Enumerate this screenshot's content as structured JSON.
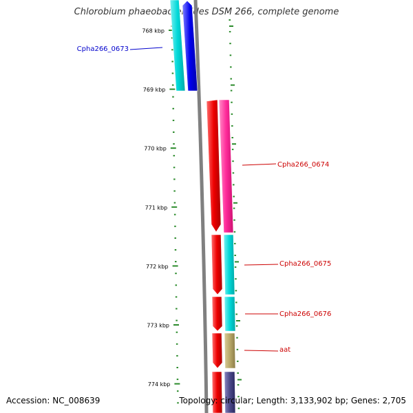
{
  "title": "Chlorobium phaeobacteroides DSM 266, complete genome",
  "footer": {
    "accession": "Accession: NC_008639",
    "summary": "Topology: circular; Length: 3,133,902 bp; Genes: 2,705"
  },
  "colors": {
    "backbone": "#808080",
    "tick": "#2a8a2a",
    "label_blue": "#0000cc",
    "label_red": "#cc0000",
    "cyan": "#00d8d8",
    "blue": "#0000ee",
    "red": "#ee0000",
    "magenta": "#ff2a9a",
    "khaki": "#b8a868",
    "slate": "#4a4888"
  },
  "ruler": [
    {
      "label": "768 kbp"
    },
    {
      "label": "769 kbp"
    },
    {
      "label": "770 kbp"
    },
    {
      "label": "771 kbp"
    },
    {
      "label": "772 kbp"
    },
    {
      "label": "773 kbp"
    },
    {
      "label": "774 kbp"
    }
  ],
  "features": [
    {
      "name": "Cpha266_0673",
      "strand": "minus",
      "color": "label_blue",
      "labeled": true
    },
    {
      "name": "Cpha266_0674",
      "strand": "plus",
      "color": "label_red",
      "labeled": true
    },
    {
      "name": "Cpha266_0675",
      "strand": "plus",
      "color": "label_red",
      "labeled": true
    },
    {
      "name": "Cpha266_0676",
      "strand": "plus",
      "color": "label_red",
      "labeled": true
    },
    {
      "name": "aat",
      "strand": "plus",
      "color": "label_red",
      "labeled": true
    }
  ]
}
